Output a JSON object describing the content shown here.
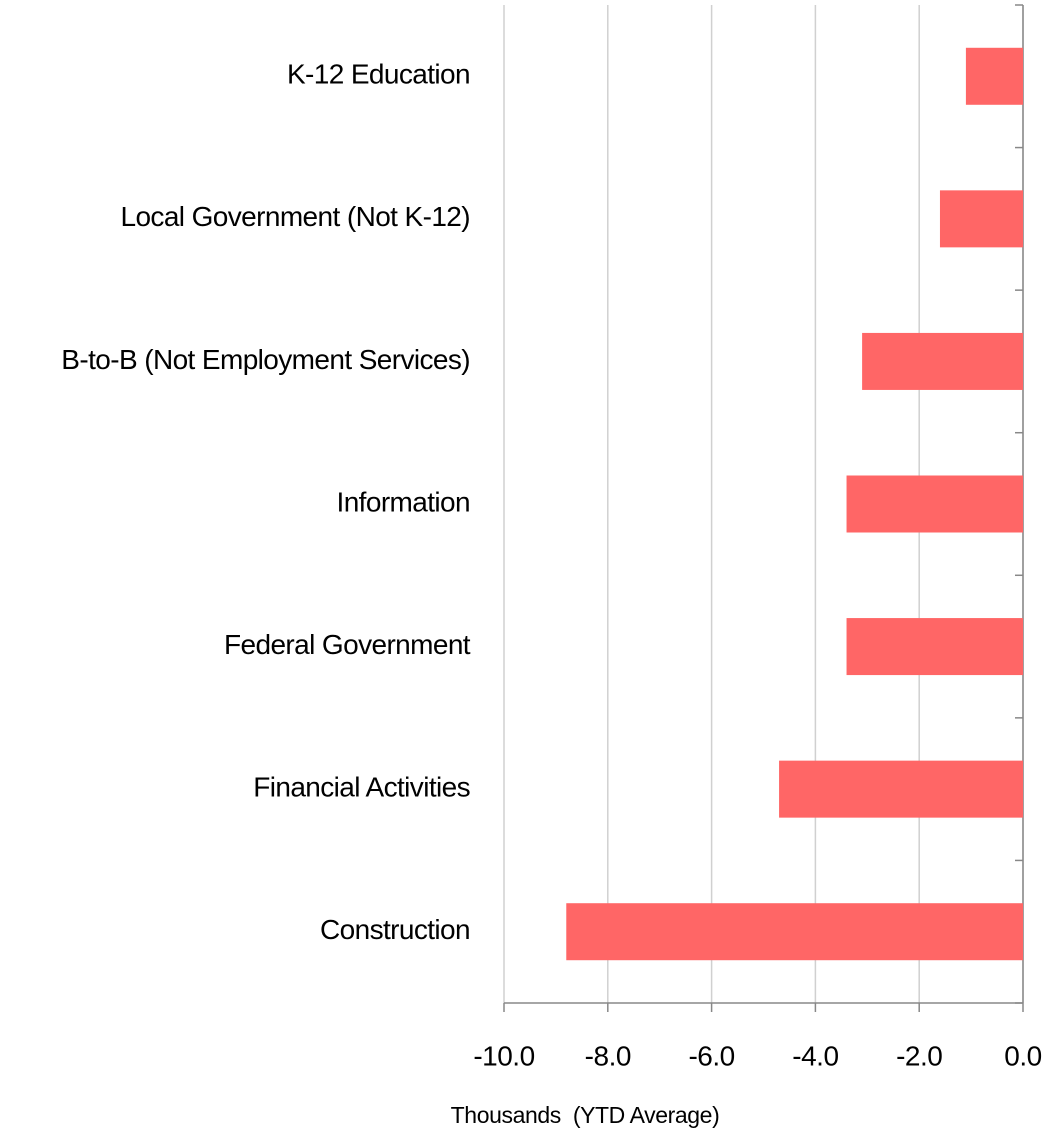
{
  "chart_data": {
    "type": "barh",
    "categories": [
      "K-12 Education",
      "Local Government (Not K-12)",
      "B-to-B (Not Employment Services)",
      "Information",
      "Federal Government",
      "Financial Activities",
      "Construction"
    ],
    "values": [
      -1.1,
      -1.6,
      -3.1,
      -3.4,
      -3.4,
      -4.7,
      -8.8
    ],
    "color": "#ff6666",
    "xlabel": "Thousands  (YTD Average)",
    "xlim": [
      -10,
      0
    ],
    "xticks": [
      {
        "value": -10,
        "label": "-10.0"
      },
      {
        "value": -8,
        "label": "-8.0"
      },
      {
        "value": -6,
        "label": "-6.0"
      },
      {
        "value": -4,
        "label": "-4.0"
      },
      {
        "value": -2,
        "label": "-2.0"
      },
      {
        "value": 0,
        "label": "0.0"
      }
    ],
    "grid": true
  }
}
